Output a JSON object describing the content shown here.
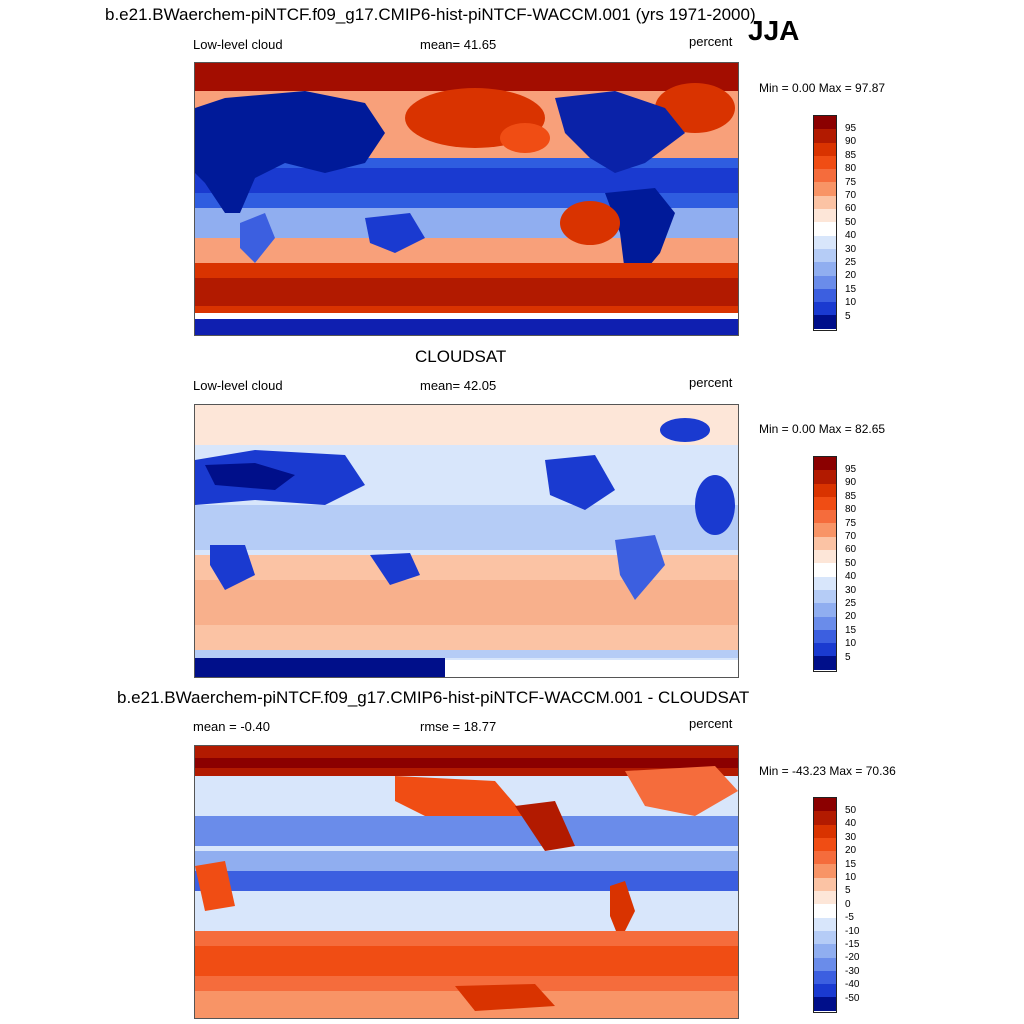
{
  "main_title": "b.e21.BWaerchem-piNTCF.f09_g17.CMIP6-hist-piNTCF-WACCM.001 (yrs 1971-2000)",
  "season": "JJA",
  "panels": [
    {
      "id": "model",
      "heading": "",
      "left_label": "Low-level cloud",
      "center_label": "mean=  41.65",
      "units": "percent",
      "minmax": "Min =   0.00 Max =  97.87",
      "levels": [
        "95",
        "90",
        "85",
        "80",
        "75",
        "70",
        "60",
        "50",
        "40",
        "30",
        "25",
        "20",
        "15",
        "10",
        "5"
      ]
    },
    {
      "id": "obs",
      "heading": "CLOUDSAT",
      "left_label": "Low-level cloud",
      "center_label": "mean=  42.05",
      "units": "percent",
      "minmax": "Min =   0.00 Max =  82.65",
      "levels": [
        "95",
        "90",
        "85",
        "80",
        "75",
        "70",
        "60",
        "50",
        "40",
        "30",
        "25",
        "20",
        "15",
        "10",
        "5"
      ]
    },
    {
      "id": "diff",
      "heading": "b.e21.BWaerchem-piNTCF.f09_g17.CMIP6-hist-piNTCF-WACCM.001 - CLOUDSAT",
      "left_label": "mean =  -0.40",
      "center_label": "rmse =  18.77",
      "units": "percent",
      "minmax": "Min = -43.23 Max =  70.36",
      "levels": [
        "50",
        "40",
        "30",
        "20",
        "15",
        "10",
        "5",
        "0",
        "-5",
        "-10",
        "-15",
        "-20",
        "-30",
        "-40",
        "-50"
      ]
    }
  ],
  "colors": {
    "scale": [
      "#8b0000",
      "#b21a00",
      "#d93300",
      "#f04d14",
      "#f56c3c",
      "#f89466",
      "#fbc3a4",
      "#fde6d8",
      "#ffffff",
      "#d8e6fb",
      "#b5ccf6",
      "#90aef0",
      "#6a8cea",
      "#3c5fe0",
      "#1a3ad0",
      "#0f1fb0",
      "#000f8a"
    ],
    "ocean_warm": "#c9290a",
    "ocean_cool": "#2f5de0",
    "land_dark": "#001a99"
  }
}
